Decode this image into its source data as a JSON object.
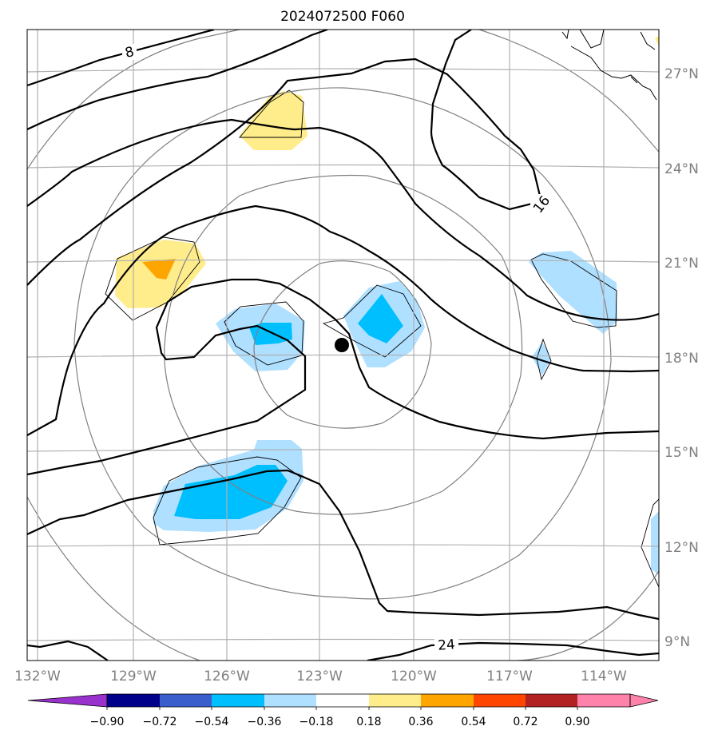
{
  "chart_data": {
    "type": "map-contour",
    "title": "2024072500 F060",
    "lon_ticks": [
      "132°W",
      "129°W",
      "126°W",
      "123°W",
      "120°W",
      "117°W",
      "114°W"
    ],
    "lon_values": [
      -132,
      -129,
      -126,
      -123,
      -120,
      -117,
      -114
    ],
    "lat_ticks": [
      "27°N",
      "24°N",
      "21°N",
      "18°N",
      "15°N",
      "12°N",
      "9°N"
    ],
    "lat_values": [
      27,
      24,
      21,
      18,
      15,
      12,
      9
    ],
    "lon_range": [
      -132.3,
      -112.2
    ],
    "lat_range": [
      8.3,
      28.3
    ],
    "contour_labels": [
      "8",
      "16",
      "24"
    ],
    "colorbar": {
      "ticks": [
        "−0.90",
        "−0.72",
        "−0.54",
        "−0.36",
        "−0.18",
        "0.18",
        "0.36",
        "0.54",
        "0.72",
        "0.90"
      ],
      "values": [
        -0.9,
        -0.72,
        -0.54,
        -0.36,
        -0.18,
        0.18,
        0.36,
        0.54,
        0.72,
        0.9
      ],
      "colors": [
        "#9932cc",
        "#00008b",
        "#3a5fcd",
        "#00bfff",
        "#b0e0ff",
        "#ffffff",
        "#ffec8b",
        "#ffa500",
        "#ff4500",
        "#b22222",
        "#ff82ab"
      ],
      "extend": "both"
    },
    "storm_center": {
      "lon": -122.3,
      "lat": 18.4
    }
  }
}
